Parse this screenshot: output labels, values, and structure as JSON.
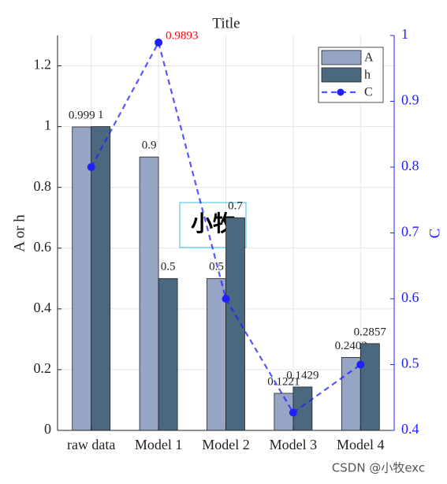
{
  "chart_data": {
    "type": "bar-line",
    "title": "Title",
    "categories": [
      "raw data",
      "Model 1",
      "Model 2",
      "Model 3",
      "Model 4"
    ],
    "series": [
      {
        "name": "A",
        "color": "#97a5c5",
        "values": [
          0.999,
          0.9,
          0.5,
          0.1221,
          0.2403
        ]
      },
      {
        "name": "h",
        "color": "#4a687e",
        "values": [
          1,
          0.5,
          0.7,
          0.1429,
          0.2857
        ]
      },
      {
        "name": "C",
        "color": "#1f1fff",
        "axis": "y2",
        "values": [
          0.8,
          0.9893,
          0.6,
          0.427,
          0.5
        ],
        "highlight": {
          "index": 1,
          "color": "#ff0000"
        }
      }
    ],
    "ylabel": "A or h",
    "y2label": "C",
    "ylim": [
      0,
      1.3
    ],
    "yticks": [
      0,
      0.2,
      0.4,
      0.6,
      0.8,
      1,
      1.2
    ],
    "y2lim": [
      0.4,
      1
    ],
    "y2ticks": [
      0.4,
      0.5,
      0.6,
      0.7,
      0.8,
      0.9,
      1
    ],
    "grid": true,
    "legend": "northeast",
    "watermark": "小牧",
    "footer": "CSDN @小牧exc"
  }
}
